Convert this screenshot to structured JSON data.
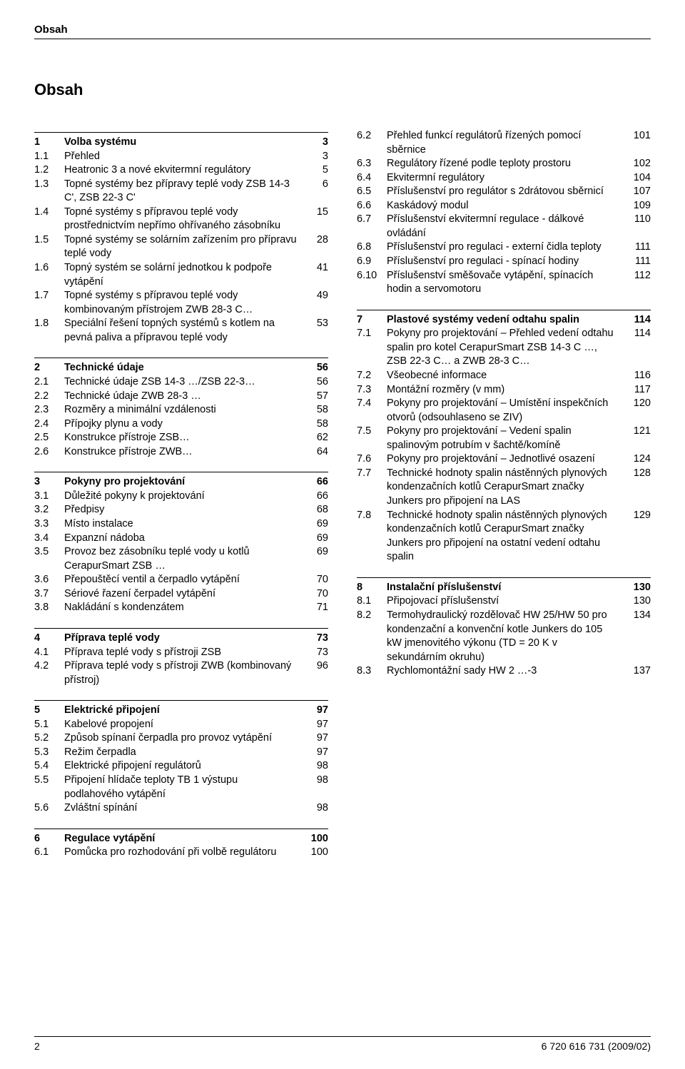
{
  "running_head": "Obsah",
  "page_title": "Obsah",
  "footer": {
    "page_number": "2",
    "doc_id": "6 720 616 731 (2009/02)"
  },
  "left_sections": [
    {
      "rows": [
        {
          "num": "1",
          "text": "Volba systému",
          "page": "3",
          "bold": true
        },
        {
          "num": "1.1",
          "text": "Přehled",
          "page": "3"
        },
        {
          "num": "1.2",
          "text": "Heatronic 3 a nové ekvitermní regulátory",
          "page": "5"
        },
        {
          "num": "1.3",
          "text": "Topné systémy bez přípravy teplé vody ZSB 14-3 C', ZSB 22-3 C'",
          "page": "6"
        },
        {
          "num": "1.4",
          "text": "Topné systémy s přípravou teplé vody prostřednictvím nepřímo ohřívaného zásobníku",
          "page": "15"
        },
        {
          "num": "1.5",
          "text": "Topné systémy se solárním zařízením pro přípravu teplé vody",
          "page": "28"
        },
        {
          "num": "1.6",
          "text": "Topný systém se solární jednotkou k podpoře vytápění",
          "page": "41"
        },
        {
          "num": "1.7",
          "text": "Topné systémy s přípravou teplé vody kombinovaným přístrojem ZWB 28-3 C…",
          "page": "49"
        },
        {
          "num": "1.8",
          "text": "Speciální řešení topných systémů s kotlem na pevná paliva a přípravou teplé vody",
          "page": "53"
        }
      ]
    },
    {
      "rows": [
        {
          "num": "2",
          "text": "Technické údaje",
          "page": "56",
          "bold": true
        },
        {
          "num": "2.1",
          "text": "Technické údaje ZSB 14-3 …/ZSB 22-3…",
          "page": "56"
        },
        {
          "num": "2.2",
          "text": "Technické údaje ZWB 28-3 …",
          "page": "57"
        },
        {
          "num": "2.3",
          "text": "Rozměry a minimální vzdálenosti",
          "page": "58"
        },
        {
          "num": "2.4",
          "text": "Přípojky plynu a vody",
          "page": "58"
        },
        {
          "num": "2.5",
          "text": "Konstrukce přístroje ZSB…",
          "page": "62"
        },
        {
          "num": "2.6",
          "text": "Konstrukce přístroje ZWB…",
          "page": "64"
        }
      ]
    },
    {
      "rows": [
        {
          "num": "3",
          "text": "Pokyny pro projektování",
          "page": "66",
          "bold": true
        },
        {
          "num": "3.1",
          "text": "Důležité pokyny k projektování",
          "page": "66"
        },
        {
          "num": "3.2",
          "text": "Předpisy",
          "page": "68"
        },
        {
          "num": "3.3",
          "text": "Místo instalace",
          "page": "69"
        },
        {
          "num": "3.4",
          "text": "Expanzní nádoba",
          "page": "69"
        },
        {
          "num": "3.5",
          "text": "Provoz bez zásobníku teplé vody u kotlů CerapurSmart ZSB …",
          "page": "69"
        },
        {
          "num": "3.6",
          "text": "Přepouštěcí ventil a čerpadlo vytápění",
          "page": "70"
        },
        {
          "num": "3.7",
          "text": "Sériové řazení čerpadel vytápění",
          "page": "70"
        },
        {
          "num": "3.8",
          "text": "Nakládání s kondenzátem",
          "page": "71"
        }
      ]
    },
    {
      "rows": [
        {
          "num": "4",
          "text": "Příprava teplé vody",
          "page": "73",
          "bold": true
        },
        {
          "num": "4.1",
          "text": "Příprava teplé vody s přístroji ZSB",
          "page": "73"
        },
        {
          "num": "4.2",
          "text": "Příprava teplé vody s přístroji ZWB (kombinovaný přístroj)",
          "page": "96"
        }
      ]
    },
    {
      "rows": [
        {
          "num": "5",
          "text": "Elektrické připojení",
          "page": "97",
          "bold": true
        },
        {
          "num": "5.1",
          "text": "Kabelové propojení",
          "page": "97"
        },
        {
          "num": "5.2",
          "text": "Způsob spínaní čerpadla pro provoz vytápění",
          "page": "97"
        },
        {
          "num": "5.3",
          "text": "Režim čerpadla",
          "page": "97"
        },
        {
          "num": "5.4",
          "text": "Elektrické připojení regulátorů",
          "page": "98"
        },
        {
          "num": "5.5",
          "text": "Připojení hlídače teploty TB 1 výstupu podlahového vytápění",
          "page": "98"
        },
        {
          "num": "5.6",
          "text": "Zvláštní spínání",
          "page": "98"
        }
      ]
    },
    {
      "rows": [
        {
          "num": "6",
          "text": "Regulace vytápění",
          "page": "100",
          "bold": true
        },
        {
          "num": "6.1",
          "text": "Pomůcka pro rozhodování při volbě regulátoru",
          "page": "100"
        }
      ]
    }
  ],
  "right_sections": [
    {
      "no_rule": true,
      "rows": [
        {
          "num": "6.2",
          "text": "Přehled funkcí regulátorů řízených pomocí sběrnice",
          "page": "101"
        },
        {
          "num": "6.3",
          "text": "Regulátory řízené podle teploty prostoru",
          "page": "102"
        },
        {
          "num": "6.4",
          "text": "Ekvitermní regulátory",
          "page": "104"
        },
        {
          "num": "6.5",
          "text": "Příslušenství pro regulátor s 2drátovou sběrnicí",
          "page": "107"
        },
        {
          "num": "6.6",
          "text": "Kaskádový modul",
          "page": "109"
        },
        {
          "num": "6.7",
          "text": "Příslušenství ekvitermní regulace - dálkové ovládání",
          "page": "110"
        },
        {
          "num": "6.8",
          "text": "Příslušenství pro regulaci - externí čidla teploty",
          "page": "111"
        },
        {
          "num": "6.9",
          "text": "Příslušenství pro regulaci - spínací hodiny",
          "page": "111"
        },
        {
          "num": "6.10",
          "text": "Příslušenství směšovače vytápění, spínacích hodin a servomotoru",
          "page": "112"
        }
      ]
    },
    {
      "rows": [
        {
          "num": "7",
          "text": "Plastové systémy vedení odtahu spalin",
          "page": "114",
          "bold": true
        },
        {
          "num": "7.1",
          "text": "Pokyny pro projektování – Přehled vedení odtahu spalin pro kotel CerapurSmart ZSB 14-3 C …, ZSB 22-3 C… a ZWB 28-3 C…",
          "page": "114"
        },
        {
          "num": "7.2",
          "text": "Všeobecné informace",
          "page": "116"
        },
        {
          "num": "7.3",
          "text": "Montážní rozměry (v mm)",
          "page": "117"
        },
        {
          "num": "7.4",
          "text": "Pokyny pro projektování – Umístění inspekčních otvorů (odsouhlaseno se ZIV)",
          "page": "120"
        },
        {
          "num": "7.5",
          "text": "Pokyny pro projektování – Vedení spalin spalinovým potrubím v šachtě/komíně",
          "page": "121"
        },
        {
          "num": "7.6",
          "text": "Pokyny pro projektování – Jednotlivé osazení",
          "page": "124"
        },
        {
          "num": "7.7",
          "text": "Technické hodnoty spalin nástěnných plynových kondenzačních kotlů CerapurSmart značky Junkers pro připojení na LAS",
          "page": "128"
        },
        {
          "num": "7.8",
          "text": "Technické hodnoty spalin nástěnných plynových kondenzačních kotlů CerapurSmart značky Junkers pro připojení na ostatní vedení odtahu spalin",
          "page": "129"
        }
      ]
    },
    {
      "rows": [
        {
          "num": "8",
          "text": "Instalační příslušenství",
          "page": "130",
          "bold": true
        },
        {
          "num": "8.1",
          "text": "Připojovací příslušenství",
          "page": "130"
        },
        {
          "num": "8.2",
          "text": "Termohydraulický rozdělovač HW 25/HW 50 pro kondenzační a konvenční kotle Junkers do 105 kW jmenovitého výkonu (TD = 20 K v sekundárním okruhu)",
          "page": "134"
        },
        {
          "num": "8.3",
          "text": "Rychlomontážní sady HW 2 …-3",
          "page": "137"
        }
      ]
    }
  ]
}
